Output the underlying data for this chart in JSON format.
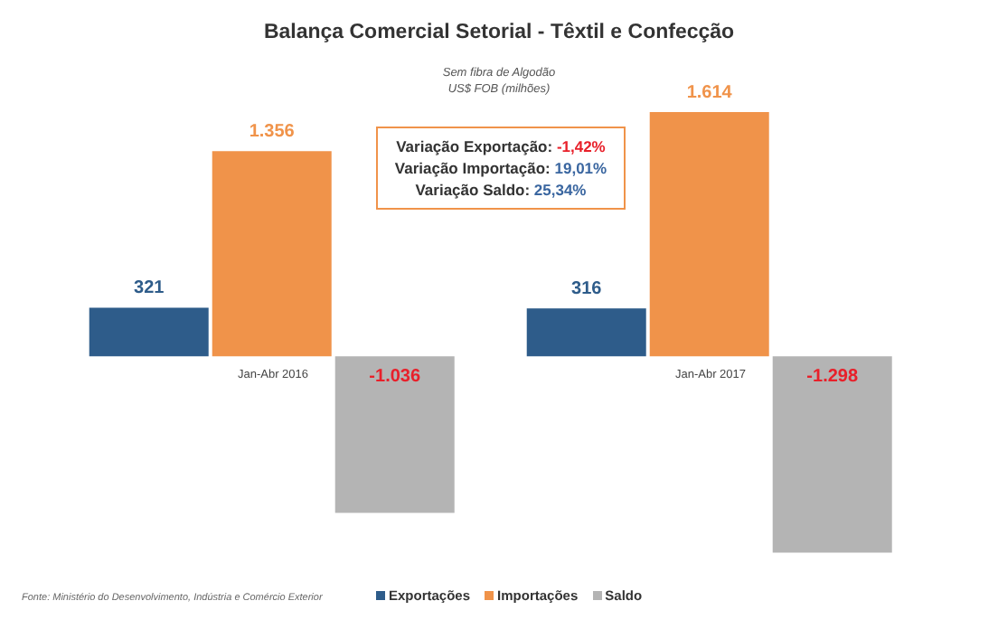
{
  "chart_data": {
    "type": "bar",
    "title": "Balança Comercial Setorial - Têxtil e Confecção",
    "subtitle": "Sem fibra de Algodão\nUS$ FOB (milhões)",
    "categories": [
      "Jan-Abr 2016",
      "Jan-Abr 2017"
    ],
    "series": [
      {
        "name": "Exportações",
        "color": "#2e5c8a",
        "values": [
          321,
          316
        ],
        "value_labels": [
          "321",
          "316"
        ]
      },
      {
        "name": "Importações",
        "color": "#f0934a",
        "values": [
          1356,
          1614
        ],
        "value_labels": [
          "1.356",
          "1.614"
        ]
      },
      {
        "name": "Saldo",
        "color": "#b4b4b4",
        "values": [
          -1036,
          -1298
        ],
        "value_labels": [
          "-1.036",
          "-1.298"
        ]
      }
    ],
    "legend": "bottom",
    "grid": false,
    "annotations": [
      "Variação Exportação: -1,42%",
      "Variação Importação: 19,01%",
      "Variação Saldo: 25,34%",
      "Fonte: Ministério do Desenvolvimento, Indústria e Comércio Exterior"
    ]
  }
}
